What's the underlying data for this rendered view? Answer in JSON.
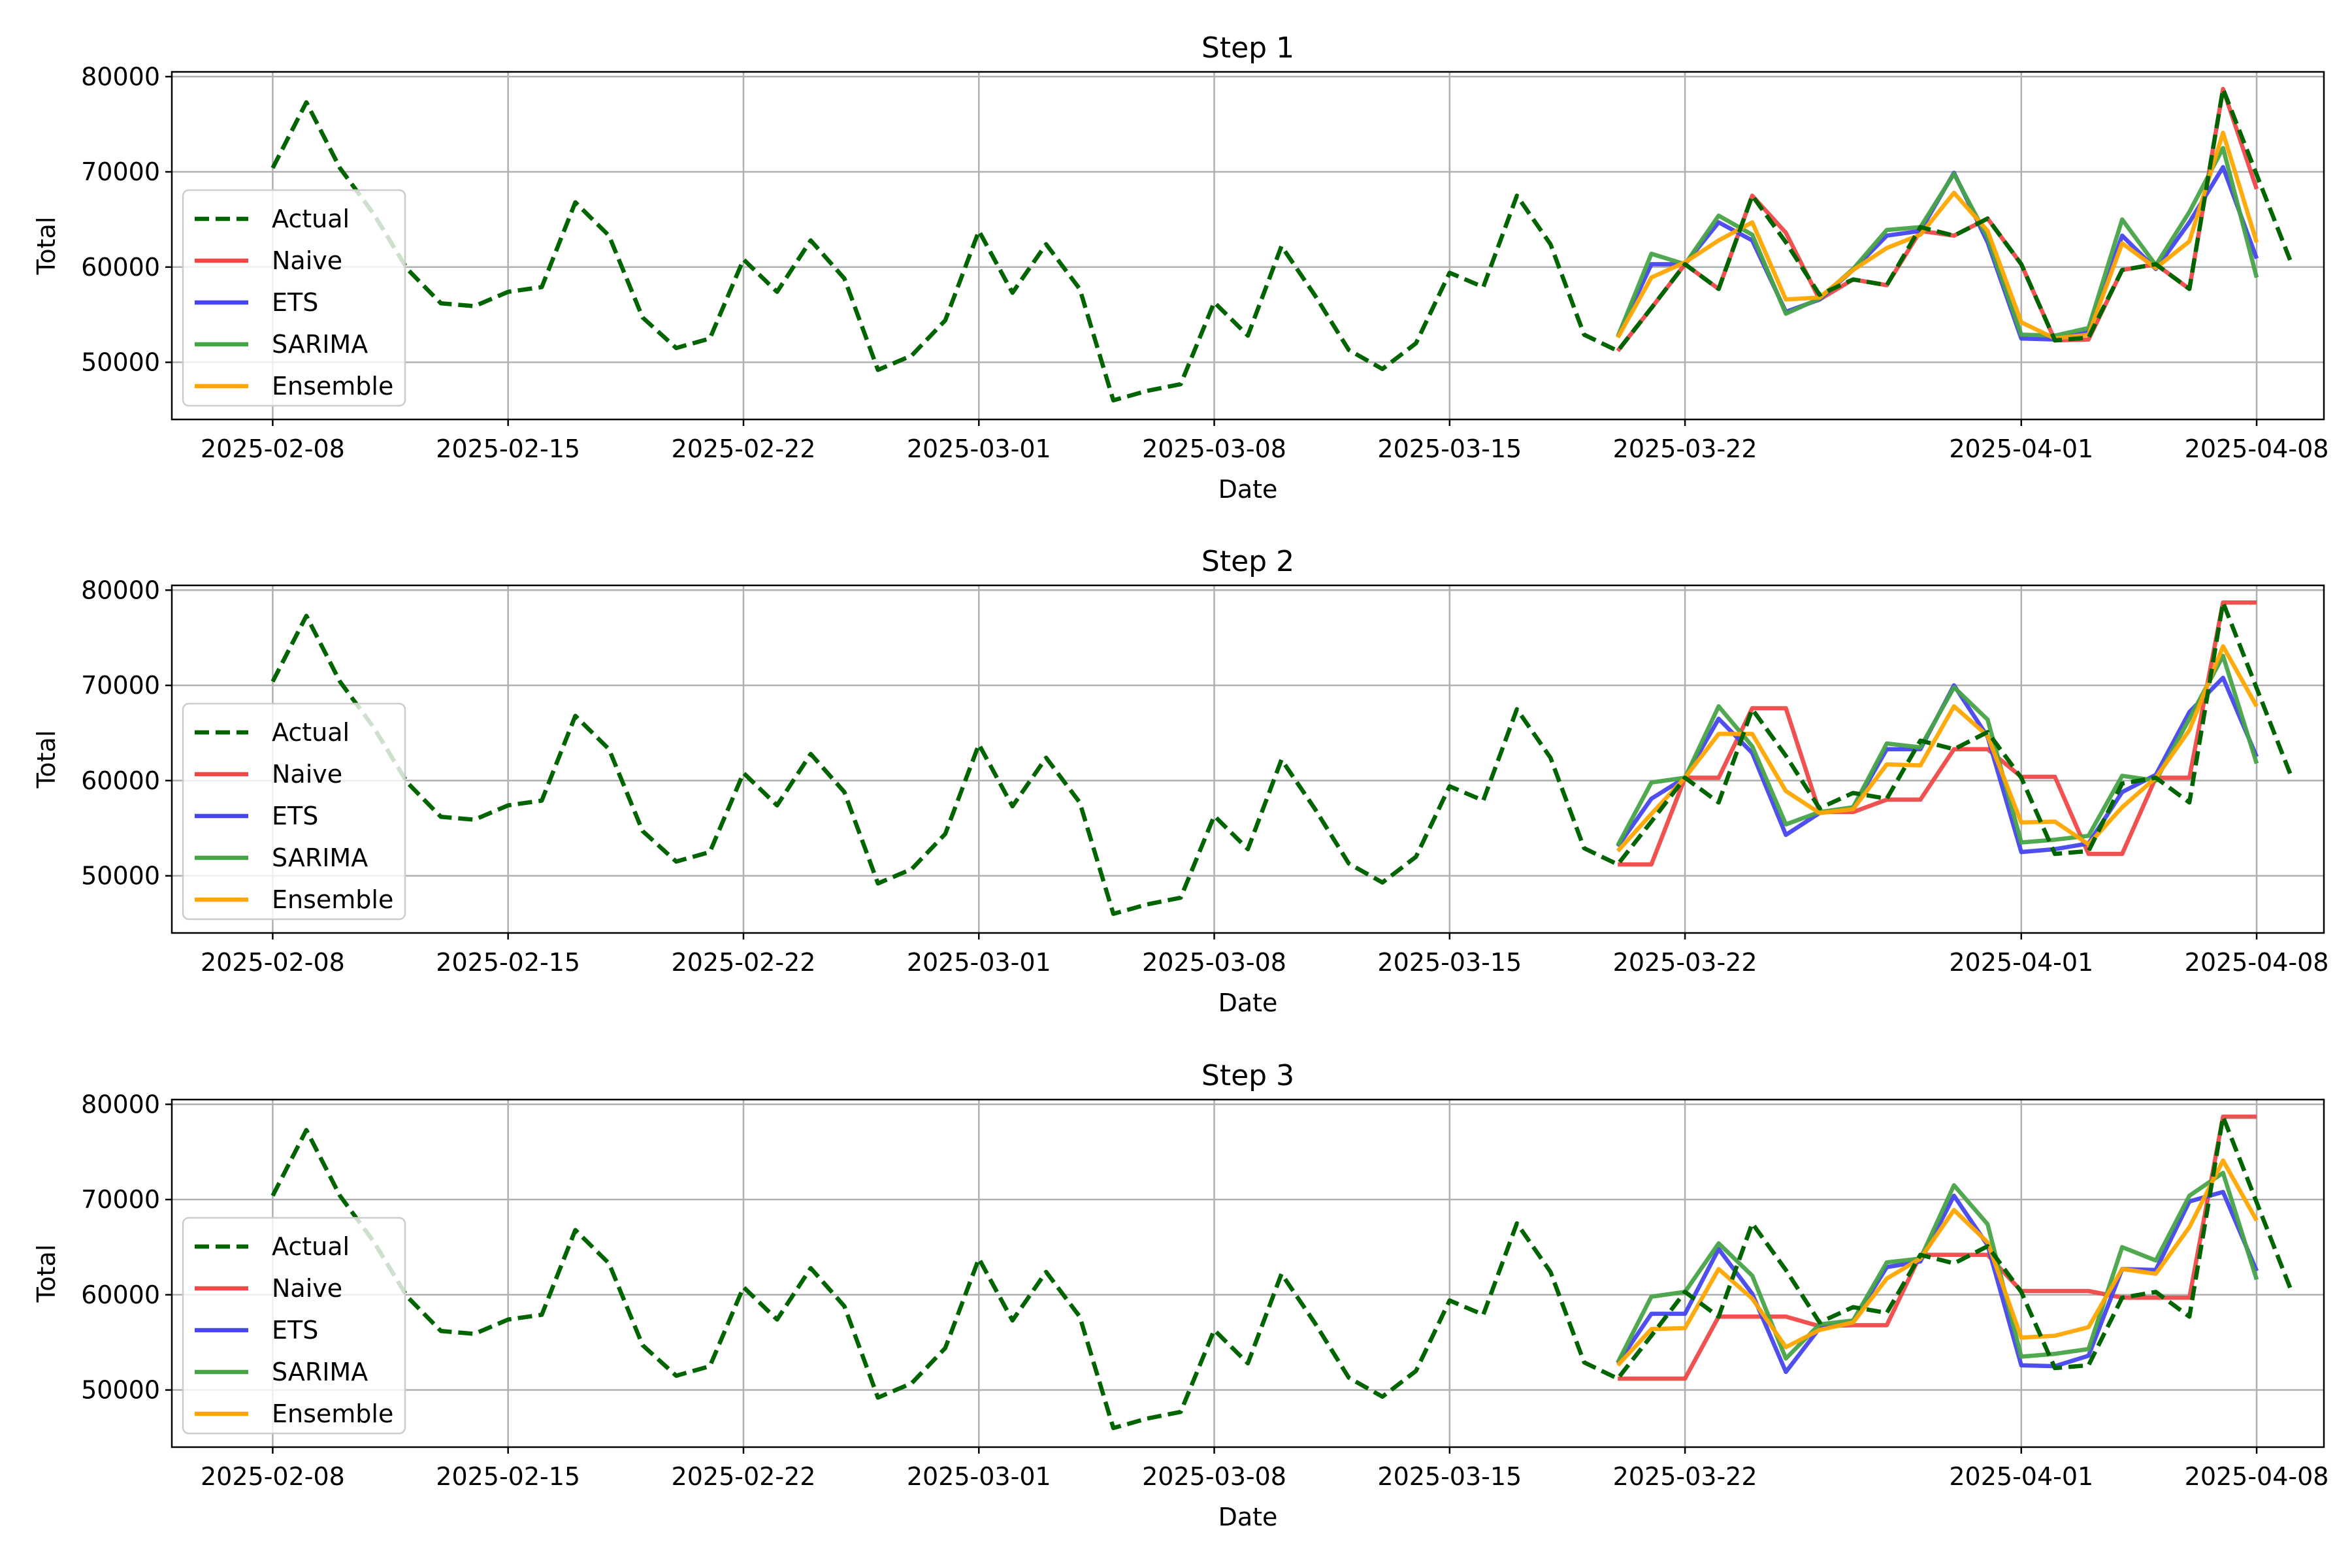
{
  "chart_data": [
    {
      "type": "line",
      "title": "Step 1",
      "xlabel": "Date",
      "ylabel": "Total",
      "ylim": [
        44000,
        80500
      ],
      "yticks": [
        50000,
        60000,
        70000,
        80000
      ],
      "xticks": [
        "2025-02-08",
        "2025-02-15",
        "2025-02-22",
        "2025-03-01",
        "2025-03-08",
        "2025-03-15",
        "2025-03-22",
        "2025-04-01",
        "2025-04-08"
      ],
      "grid": true,
      "legend_position": "center-left",
      "actual": {
        "name": "Actual",
        "start": "2025-02-08",
        "values": [
          70400,
          77300,
          70400,
          65600,
          59800,
          56200,
          55900,
          57400,
          57900,
          66800,
          63300,
          54700,
          51500,
          52500,
          60800,
          57400,
          62800,
          58800,
          49200,
          50700,
          54400,
          63800,
          57300,
          62400,
          57700,
          46000,
          47000,
          47700,
          56300,
          52800,
          62200,
          57000,
          51300,
          49300,
          52000,
          59400,
          57900,
          67500,
          62400,
          52900,
          51200,
          55700,
          60300,
          57700,
          67500,
          62600,
          57100,
          58700,
          58100,
          64200,
          63300,
          65100,
          60300,
          52300,
          52600,
          59700,
          60300,
          57700,
          78700,
          69700,
          60700
        ]
      },
      "series": [
        {
          "name": "Naive",
          "start": "2025-03-20",
          "values": [
            51200,
            55700,
            60300,
            57700,
            67500,
            63600,
            56600,
            58700,
            58100,
            63800,
            63300,
            65100,
            60300,
            52300,
            52400,
            59700,
            60300,
            57700,
            78700,
            68200
          ]
        },
        {
          "name": "ETS",
          "start": "2025-03-20",
          "values": [
            52700,
            60300,
            60300,
            64700,
            62800,
            55300,
            56600,
            59700,
            63300,
            63800,
            69900,
            62600,
            52500,
            52400,
            53200,
            63300,
            59800,
            64700,
            70500,
            60900
          ]
        },
        {
          "name": "SARIMA",
          "start": "2025-03-20",
          "values": [
            52700,
            61400,
            60300,
            65400,
            63400,
            55100,
            56700,
            59800,
            63900,
            64200,
            69800,
            63100,
            52900,
            52800,
            53600,
            65000,
            60200,
            65800,
            72500,
            58900
          ]
        },
        {
          "name": "Ensemble",
          "start": "2025-03-20",
          "values": [
            52600,
            58900,
            60500,
            62800,
            64700,
            56600,
            56800,
            59700,
            62000,
            63400,
            67800,
            63800,
            54200,
            52500,
            52900,
            62500,
            59900,
            62700,
            74100,
            62600
          ]
        }
      ]
    },
    {
      "type": "line",
      "title": "Step 2",
      "xlabel": "Date",
      "ylabel": "Total",
      "ylim": [
        44000,
        80500
      ],
      "yticks": [
        50000,
        60000,
        70000,
        80000
      ],
      "xticks": [
        "2025-02-08",
        "2025-02-15",
        "2025-02-22",
        "2025-03-01",
        "2025-03-08",
        "2025-03-15",
        "2025-03-22",
        "2025-04-01",
        "2025-04-08"
      ],
      "grid": true,
      "legend_position": "center-left",
      "actual": {
        "name": "Actual",
        "start": "2025-02-08",
        "values": [
          70400,
          77300,
          70400,
          65600,
          59800,
          56200,
          55900,
          57400,
          57900,
          66800,
          63300,
          54700,
          51500,
          52500,
          60800,
          57400,
          62800,
          58800,
          49200,
          50700,
          54400,
          63800,
          57300,
          62400,
          57700,
          46000,
          47000,
          47700,
          56300,
          52800,
          62200,
          57000,
          51300,
          49300,
          52000,
          59400,
          57900,
          67500,
          62400,
          52900,
          51200,
          55700,
          60300,
          57700,
          67500,
          62600,
          57100,
          58700,
          58100,
          64200,
          63300,
          65100,
          60300,
          52300,
          52600,
          59700,
          60300,
          57700,
          78700,
          69700,
          60700
        ]
      },
      "series": [
        {
          "name": "Naive",
          "start": "2025-03-20",
          "values": [
            51200,
            51200,
            60300,
            60300,
            67600,
            67600,
            56700,
            56700,
            58000,
            58000,
            63300,
            63300,
            60400,
            60400,
            52300,
            52300,
            60300,
            60300,
            78700,
            78700
          ]
        },
        {
          "name": "ETS",
          "start": "2025-03-20",
          "values": [
            53100,
            58100,
            60300,
            66500,
            62900,
            54300,
            56600,
            57100,
            63300,
            63300,
            70000,
            64600,
            52500,
            52800,
            53400,
            58800,
            60600,
            67200,
            70800,
            62500
          ]
        },
        {
          "name": "SARIMA",
          "start": "2025-03-20",
          "values": [
            53200,
            59800,
            60300,
            67800,
            63600,
            55400,
            56700,
            57200,
            63900,
            63500,
            69800,
            66400,
            53500,
            53800,
            54200,
            60500,
            60000,
            66500,
            73100,
            61800
          ]
        },
        {
          "name": "Ensemble",
          "start": "2025-03-20",
          "values": [
            52600,
            56500,
            60300,
            64900,
            64900,
            58900,
            56600,
            57000,
            61700,
            61600,
            67800,
            64700,
            55600,
            55700,
            53300,
            57200,
            60300,
            65300,
            74100,
            67800
          ]
        }
      ]
    },
    {
      "type": "line",
      "title": "Step 3",
      "xlabel": "Date",
      "ylabel": "Total",
      "ylim": [
        44000,
        80500
      ],
      "yticks": [
        50000,
        60000,
        70000,
        80000
      ],
      "xticks": [
        "2025-02-08",
        "2025-02-15",
        "2025-02-22",
        "2025-03-01",
        "2025-03-08",
        "2025-03-15",
        "2025-03-22",
        "2025-04-01",
        "2025-04-08"
      ],
      "grid": true,
      "legend_position": "center-left",
      "actual": {
        "name": "Actual",
        "start": "2025-02-08",
        "values": [
          70400,
          77300,
          70400,
          65600,
          59800,
          56200,
          55900,
          57400,
          57900,
          66800,
          63300,
          54700,
          51500,
          52500,
          60800,
          57400,
          62800,
          58800,
          49200,
          50700,
          54400,
          63800,
          57300,
          62400,
          57700,
          46000,
          47000,
          47700,
          56300,
          52800,
          62200,
          57000,
          51300,
          49300,
          52000,
          59400,
          57900,
          67500,
          62400,
          52900,
          51200,
          55700,
          60300,
          57700,
          67500,
          62600,
          57100,
          58700,
          58100,
          64200,
          63300,
          65100,
          60300,
          52300,
          52600,
          59700,
          60300,
          57700,
          78700,
          69700,
          60700
        ]
      },
      "series": [
        {
          "name": "Naive",
          "start": "2025-03-20",
          "values": [
            51200,
            51200,
            51200,
            57700,
            57700,
            57700,
            56700,
            56800,
            56800,
            64200,
            64200,
            64200,
            60400,
            60400,
            60400,
            59700,
            59700,
            59700,
            78700,
            78700
          ]
        },
        {
          "name": "ETS",
          "start": "2025-03-20",
          "values": [
            52800,
            58000,
            58000,
            64800,
            60100,
            51900,
            56500,
            57200,
            62900,
            63500,
            70400,
            65200,
            52600,
            52500,
            53600,
            62700,
            62600,
            69800,
            70800,
            62500
          ]
        },
        {
          "name": "SARIMA",
          "start": "2025-03-20",
          "values": [
            52900,
            59800,
            60300,
            65400,
            62000,
            53300,
            56900,
            57300,
            63400,
            63800,
            71500,
            67400,
            53500,
            53800,
            54300,
            65000,
            63600,
            70400,
            72800,
            61600
          ]
        },
        {
          "name": "Ensemble",
          "start": "2025-03-20",
          "values": [
            52600,
            56400,
            56500,
            62700,
            59600,
            54500,
            56300,
            57100,
            61700,
            63800,
            68900,
            65500,
            55500,
            55700,
            56600,
            62700,
            62200,
            67100,
            74100,
            67800
          ]
        }
      ]
    }
  ],
  "colors": {
    "Actual": "#006400",
    "Naive": "#f04848",
    "ETS": "#4646ee",
    "SARIMA": "#47a347",
    "Ensemble": "#ffa500"
  }
}
